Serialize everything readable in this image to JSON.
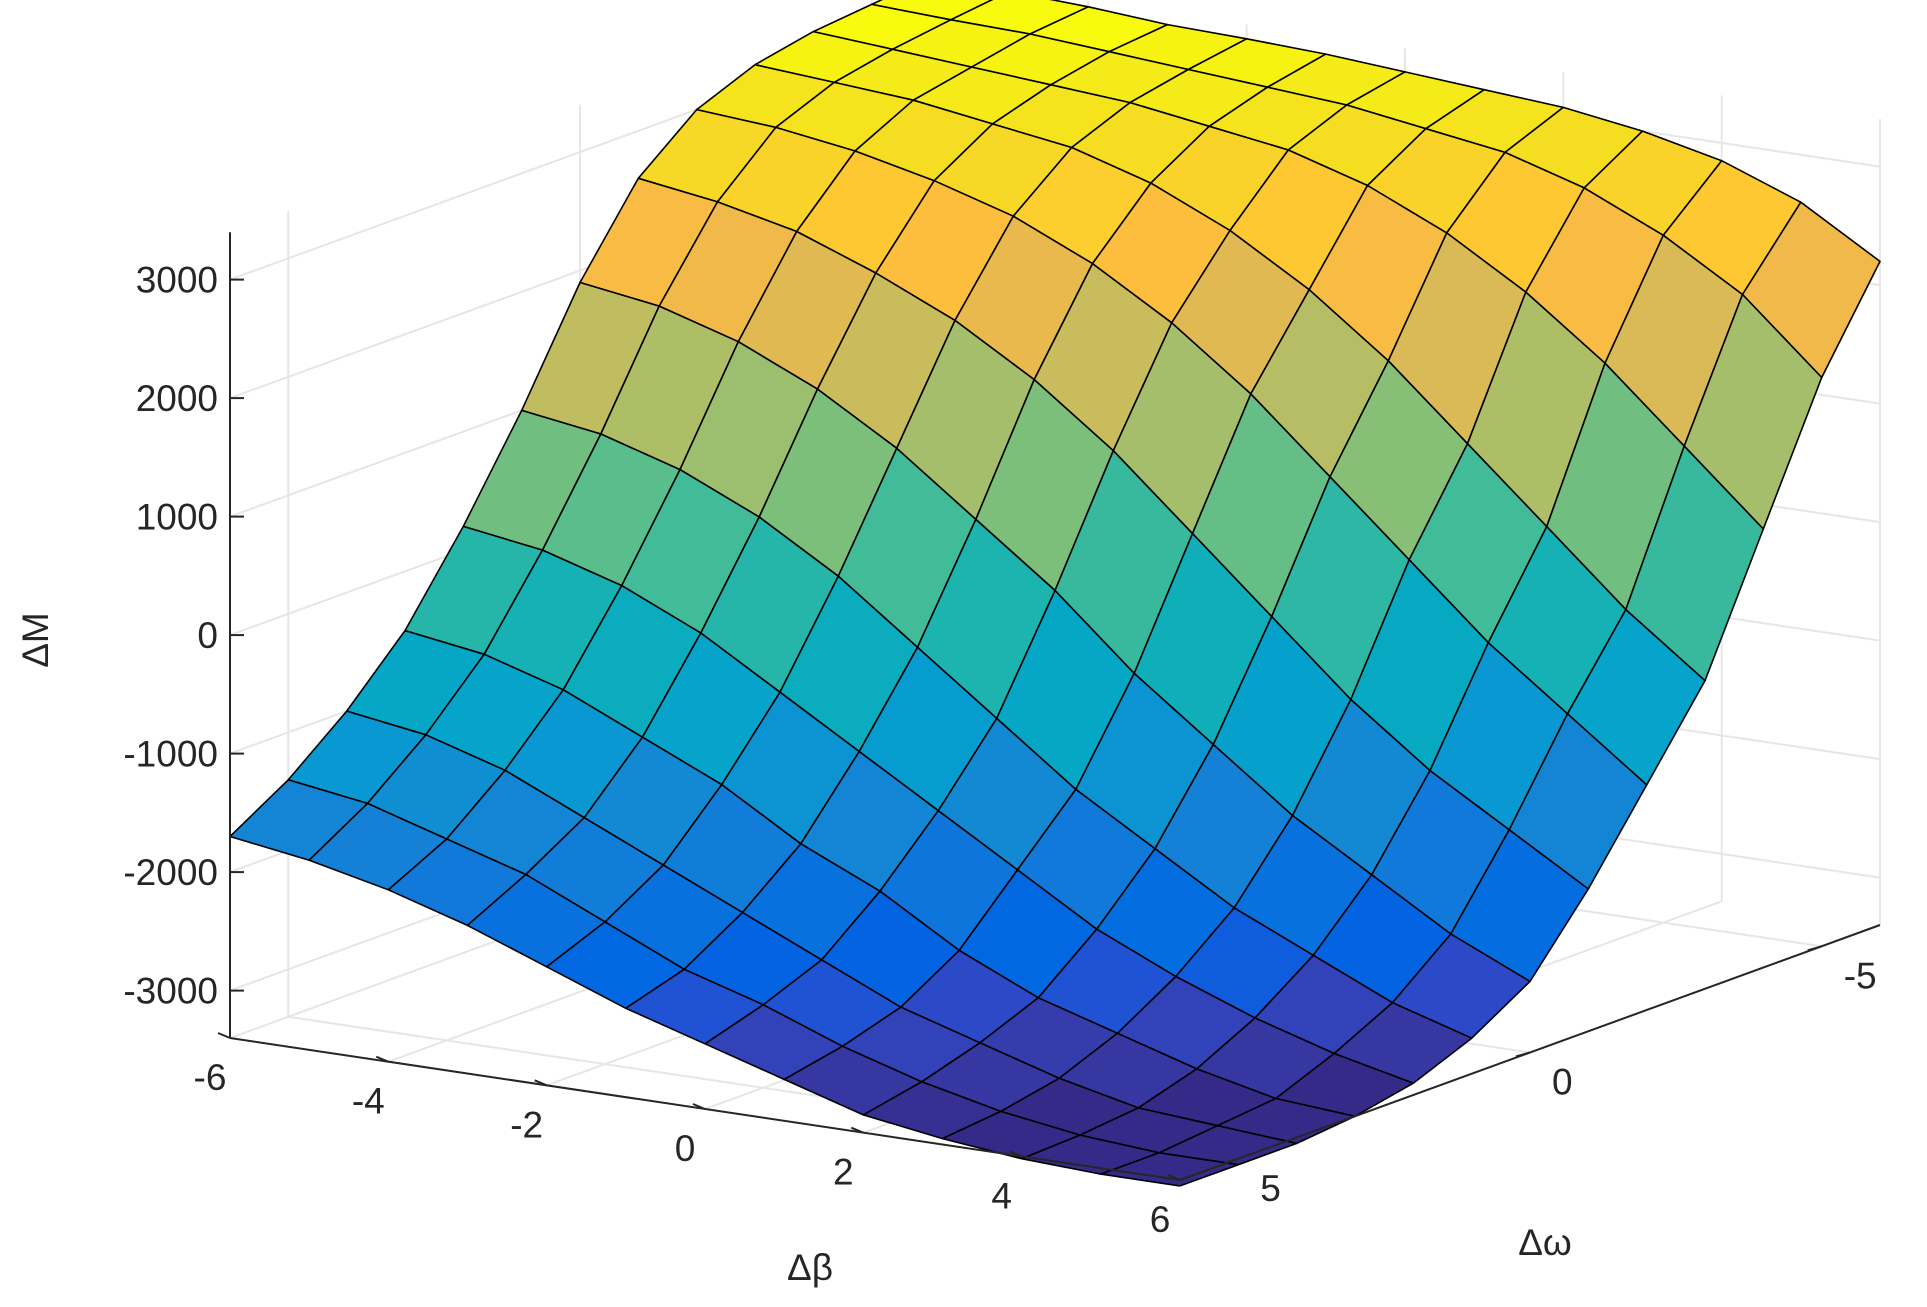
{
  "chart_data": {
    "type": "surface",
    "colormap": "parula",
    "grid": true,
    "xlabel": "Δβ",
    "ylabel": "Δω",
    "zlabel": "ΔM",
    "xlim": [
      -6,
      6
    ],
    "ylim": [
      -6,
      6
    ],
    "zlim": [
      -3400,
      3400
    ],
    "x_ticks": [
      "-6",
      "-4",
      "-2",
      "0",
      "2",
      "4",
      "6"
    ],
    "y_ticks": [
      "-5",
      "0",
      "5"
    ],
    "z_ticks": [
      "-3000",
      "-2000",
      "-1000",
      "0",
      "1000",
      "2000",
      "3000"
    ],
    "x": [
      -6,
      -5,
      -4,
      -3,
      -2,
      -1,
      0,
      1,
      2,
      3,
      4,
      5,
      6
    ],
    "y": [
      -6,
      -5,
      -4,
      -3,
      -2,
      -1,
      0,
      1,
      2,
      3,
      4,
      5,
      6
    ],
    "z": [
      [
        3400,
        3380,
        3350,
        3300,
        3280,
        3250,
        3200,
        3150,
        3100,
        3000,
        2850,
        2600,
        2200
      ],
      [
        3350,
        3320,
        3300,
        3250,
        3200,
        3150,
        3100,
        3000,
        2900,
        2700,
        2400,
        2000,
        1400
      ],
      [
        3300,
        3250,
        3200,
        3150,
        3100,
        3000,
        2900,
        2700,
        2400,
        2000,
        1500,
        900,
        300
      ],
      [
        3200,
        3150,
        3100,
        3000,
        2900,
        2700,
        2400,
        2000,
        1500,
        900,
        300,
        -300,
        -800
      ],
      [
        3000,
        2950,
        2850,
        2700,
        2500,
        2200,
        1800,
        1300,
        700,
        100,
        -500,
        -1000,
        -1500
      ],
      [
        2600,
        2500,
        2350,
        2100,
        1800,
        1400,
        900,
        300,
        -300,
        -900,
        -1400,
        -1800,
        -2200
      ],
      [
        1900,
        1800,
        1600,
        1300,
        900,
        400,
        -100,
        -700,
        -1200,
        -1700,
        -2100,
        -2500,
        -2800
      ],
      [
        1000,
        900,
        700,
        400,
        0,
        -500,
        -1000,
        -1500,
        -1900,
        -2300,
        -2600,
        -2900,
        -3100
      ],
      [
        200,
        100,
        -100,
        -400,
        -800,
        -1200,
        -1600,
        -2000,
        -2400,
        -2700,
        -2950,
        -3150,
        -3300
      ],
      [
        -500,
        -600,
        -800,
        -1100,
        -1400,
        -1800,
        -2100,
        -2500,
        -2800,
        -3000,
        -3200,
        -3350,
        -3400
      ],
      [
        -1000,
        -1100,
        -1300,
        -1600,
        -1900,
        -2200,
        -2500,
        -2800,
        -3000,
        -3200,
        -3350,
        -3400,
        -3450
      ],
      [
        -1400,
        -1500,
        -1700,
        -1900,
        -2200,
        -2500,
        -2700,
        -2950,
        -3150,
        -3300,
        -3400,
        -3450,
        -3450
      ],
      [
        -1700,
        -1800,
        -1950,
        -2150,
        -2400,
        -2650,
        -2850,
        -3050,
        -3250,
        -3350,
        -3420,
        -3450,
        -3450
      ]
    ]
  }
}
